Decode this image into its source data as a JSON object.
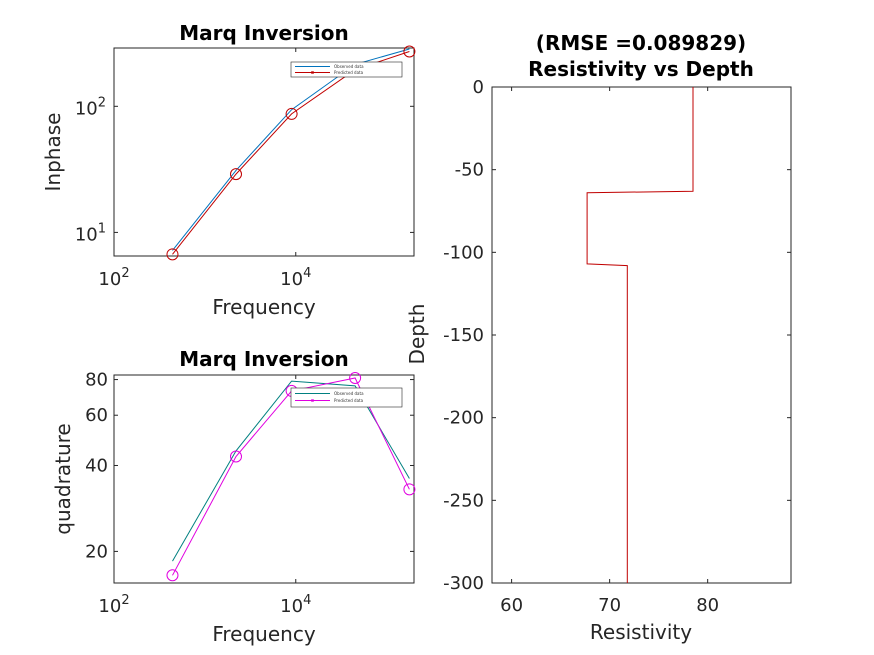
{
  "chart_data": [
    {
      "type": "line",
      "title": "Marq Inversion",
      "xlabel": "Frequency",
      "ylabel": "Inphase",
      "xscale": "log",
      "yscale": "log",
      "xlim": [
        100,
        200000
      ],
      "ylim": [
        6.5,
        290
      ],
      "xticks": [
        {
          "v": 100,
          "base": "10",
          "exp": "2"
        },
        {
          "v": 10000,
          "base": "10",
          "exp": "4"
        }
      ],
      "yticks": [
        {
          "v": 10,
          "base": "10",
          "exp": "1"
        },
        {
          "v": 100,
          "base": "10",
          "exp": "2"
        }
      ],
      "legend_placement": "top-right",
      "series": [
        {
          "name": "Observed data",
          "color": "#0072bd",
          "marker": "none",
          "x": [
            440,
            2200,
            9000,
            45000,
            178000
          ],
          "y": [
            7.2,
            31,
            94,
            215,
            285
          ]
        },
        {
          "name": "Predicted data",
          "color": "#c00000",
          "marker": "circle",
          "x": [
            440,
            2200,
            9000,
            45000,
            178000
          ],
          "y": [
            6.7,
            29,
            87,
            195,
            272
          ]
        }
      ]
    },
    {
      "type": "line",
      "title": "Marq Inversion",
      "xlabel": "Frequency",
      "ylabel": "quadrature",
      "xscale": "log",
      "yscale": "log",
      "xlim": [
        100,
        200000
      ],
      "ylim": [
        15.5,
        83
      ],
      "xticks": [
        {
          "v": 100,
          "base": "10",
          "exp": "2"
        },
        {
          "v": 10000,
          "base": "10",
          "exp": "4"
        }
      ],
      "yticks": [
        {
          "v": 20,
          "label": "20"
        },
        {
          "v": 40,
          "label": "40"
        },
        {
          "v": 60,
          "label": "60"
        },
        {
          "v": 80,
          "label": "80"
        }
      ],
      "legend_placement": "top-right",
      "series": [
        {
          "name": "Observed data",
          "color": "#008080",
          "marker": "none",
          "x": [
            440,
            2200,
            9000,
            45000,
            178000
          ],
          "y": [
            18.5,
            45,
            79,
            76,
            36
          ]
        },
        {
          "name": "Predicted data",
          "color": "#e000e0",
          "marker": "circle",
          "x": [
            440,
            2200,
            9000,
            45000,
            178000
          ],
          "y": [
            16.5,
            43,
            73,
            81,
            33
          ]
        }
      ]
    },
    {
      "type": "line",
      "title": "(RMSE =0.089829)",
      "subtitle": "Resistivity vs Depth",
      "xlabel": "Resistivity",
      "ylabel": "Depth",
      "xlim": [
        58,
        88.5
      ],
      "ylim": [
        -300,
        0
      ],
      "xticks": [
        60,
        70,
        80
      ],
      "yticks": [
        0,
        -50,
        -100,
        -150,
        -200,
        -250,
        -300
      ],
      "series": [
        {
          "color": "#c00000",
          "x": [
            78.5,
            78.5,
            67.7,
            67.7,
            71.8,
            71.8
          ],
          "y": [
            0,
            -63,
            -64,
            -107,
            -108,
            -300
          ]
        }
      ]
    }
  ]
}
